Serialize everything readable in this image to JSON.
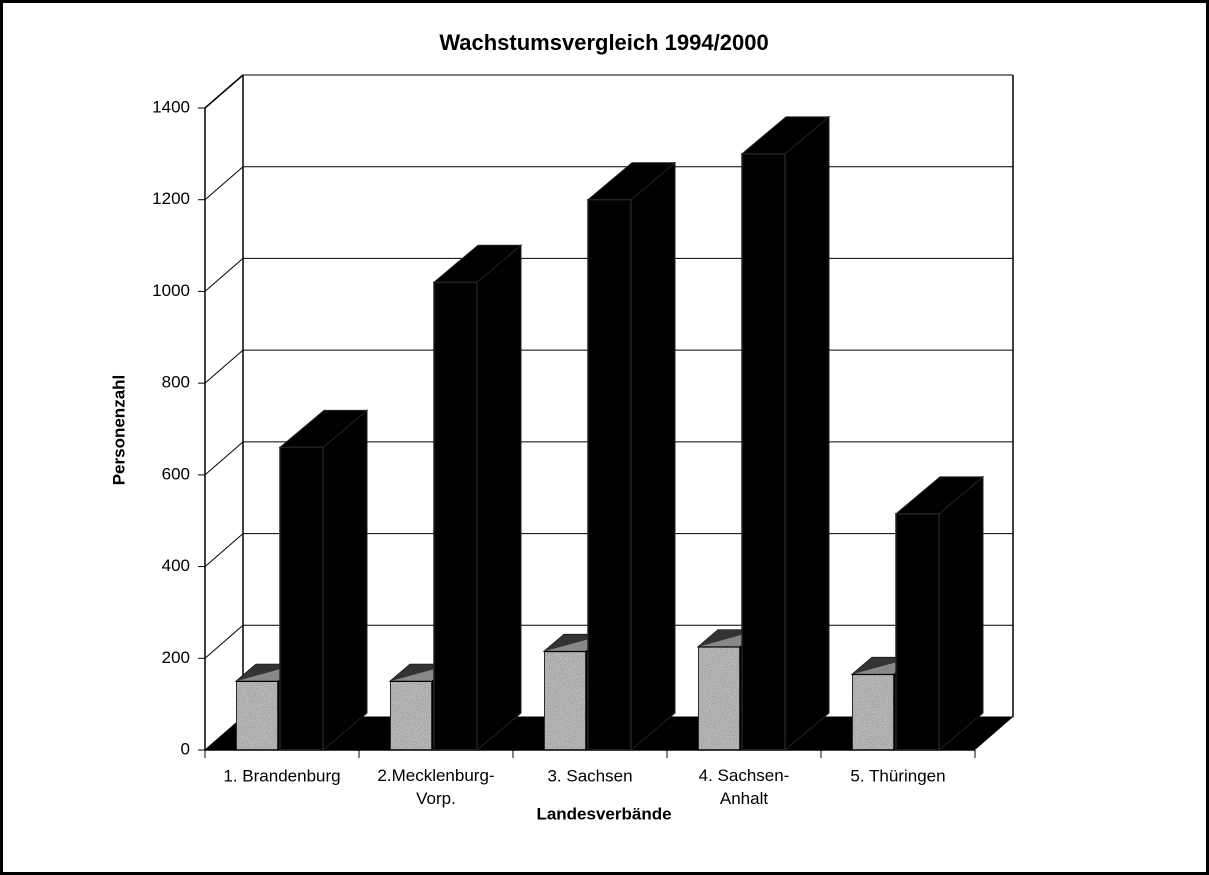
{
  "chart_data": {
    "type": "bar3d",
    "title": "Wachstumsvergleich 1994/2000",
    "x_label": "Landesverbände",
    "y_label": "Personenzahl",
    "categories": [
      "1. Brandenburg",
      "2.Mecklenburg-\nVorp.",
      "3. Sachsen",
      "4. Sachsen-\nAnhalt",
      "5. Thüringen"
    ],
    "series": [
      {
        "color": "#c4c4c4",
        "values": [
          150,
          150,
          215,
          225,
          165
        ]
      },
      {
        "color": "#000000",
        "values": [
          660,
          1020,
          1200,
          1300,
          515
        ]
      }
    ],
    "ylim": [
      0,
      1400
    ],
    "yticks": [
      0,
      200,
      400,
      600,
      800,
      1000,
      1200,
      1400
    ],
    "grid": true
  }
}
